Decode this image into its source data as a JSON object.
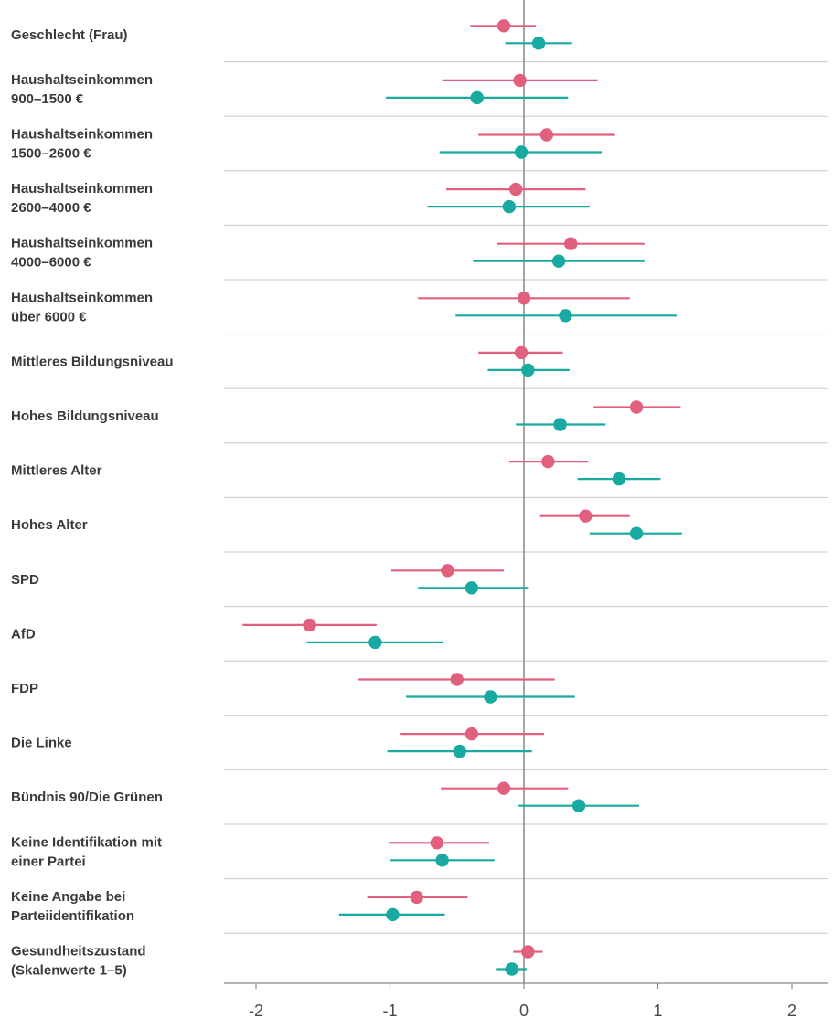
{
  "chart_data": {
    "type": "forest",
    "xlim": [
      -2.2,
      2.3
    ],
    "x_ticks": [
      {
        "value": -2,
        "label": "-2"
      },
      {
        "value": -1,
        "label": "-1"
      },
      {
        "value": 0,
        "label": "0"
      },
      {
        "value": 1,
        "label": "1"
      },
      {
        "value": 2,
        "label": "2"
      }
    ],
    "reference_line": 0,
    "grid": "row separators",
    "series": [
      {
        "color": "#E0607E"
      },
      {
        "color": "#18A9A1"
      }
    ],
    "rows": [
      {
        "label": [
          "Geschlecht (Frau)"
        ],
        "estimates": [
          {
            "est": -0.15,
            "lo": -0.4,
            "hi": 0.09
          },
          {
            "est": 0.11,
            "lo": -0.14,
            "hi": 0.36
          }
        ]
      },
      {
        "label": [
          "Haushaltseinkommen",
          "900–1500 €"
        ],
        "estimates": [
          {
            "est": -0.03,
            "lo": -0.61,
            "hi": 0.55
          },
          {
            "est": -0.35,
            "lo": -1.03,
            "hi": 0.33
          }
        ]
      },
      {
        "label": [
          "Haushaltseinkommen",
          "1500–2600 €"
        ],
        "estimates": [
          {
            "est": 0.17,
            "lo": -0.34,
            "hi": 0.68
          },
          {
            "est": -0.02,
            "lo": -0.63,
            "hi": 0.58
          }
        ]
      },
      {
        "label": [
          "Haushaltseinkommen",
          "2600–4000 €"
        ],
        "estimates": [
          {
            "est": -0.06,
            "lo": -0.58,
            "hi": 0.46
          },
          {
            "est": -0.11,
            "lo": -0.72,
            "hi": 0.49
          }
        ]
      },
      {
        "label": [
          "Haushaltseinkommen",
          "4000–6000 €"
        ],
        "estimates": [
          {
            "est": 0.35,
            "lo": -0.2,
            "hi": 0.9
          },
          {
            "est": 0.26,
            "lo": -0.38,
            "hi": 0.9
          }
        ]
      },
      {
        "label": [
          "Haushaltseinkommen",
          "über 6000 €"
        ],
        "estimates": [
          {
            "est": 0.0,
            "lo": -0.79,
            "hi": 0.79
          },
          {
            "est": 0.31,
            "lo": -0.51,
            "hi": 1.14
          }
        ]
      },
      {
        "label": [
          "Mittleres Bildungsniveau"
        ],
        "estimates": [
          {
            "est": -0.02,
            "lo": -0.34,
            "hi": 0.29
          },
          {
            "est": 0.03,
            "lo": -0.27,
            "hi": 0.34
          }
        ]
      },
      {
        "label": [
          "Hohes Bildungsniveau"
        ],
        "estimates": [
          {
            "est": 0.84,
            "lo": 0.52,
            "hi": 1.17
          },
          {
            "est": 0.27,
            "lo": -0.06,
            "hi": 0.61
          }
        ]
      },
      {
        "label": [
          "Mittleres Alter"
        ],
        "estimates": [
          {
            "est": 0.18,
            "lo": -0.11,
            "hi": 0.48
          },
          {
            "est": 0.71,
            "lo": 0.4,
            "hi": 1.02
          }
        ]
      },
      {
        "label": [
          "Hohes Alter"
        ],
        "estimates": [
          {
            "est": 0.46,
            "lo": 0.12,
            "hi": 0.79
          },
          {
            "est": 0.84,
            "lo": 0.49,
            "hi": 1.18
          }
        ]
      },
      {
        "label": [
          "SPD"
        ],
        "estimates": [
          {
            "est": -0.57,
            "lo": -0.99,
            "hi": -0.15
          },
          {
            "est": -0.39,
            "lo": -0.79,
            "hi": 0.03
          }
        ]
      },
      {
        "label": [
          "AfD"
        ],
        "estimates": [
          {
            "est": -1.6,
            "lo": -2.1,
            "hi": -1.1
          },
          {
            "est": -1.11,
            "lo": -1.62,
            "hi": -0.6
          }
        ]
      },
      {
        "label": [
          "FDP"
        ],
        "estimates": [
          {
            "est": -0.5,
            "lo": -1.24,
            "hi": 0.23
          },
          {
            "est": -0.25,
            "lo": -0.88,
            "hi": 0.38
          }
        ]
      },
      {
        "label": [
          "Die Linke"
        ],
        "estimates": [
          {
            "est": -0.39,
            "lo": -0.92,
            "hi": 0.15
          },
          {
            "est": -0.48,
            "lo": -1.02,
            "hi": 0.06
          }
        ]
      },
      {
        "label": [
          "Bündnis 90/Die Grünen"
        ],
        "estimates": [
          {
            "est": -0.15,
            "lo": -0.62,
            "hi": 0.33
          },
          {
            "est": 0.41,
            "lo": -0.04,
            "hi": 0.86
          }
        ]
      },
      {
        "label": [
          "Keine Identifikation mit",
          "einer Partei"
        ],
        "estimates": [
          {
            "est": -0.65,
            "lo": -1.01,
            "hi": -0.26
          },
          {
            "est": -0.61,
            "lo": -1.0,
            "hi": -0.22
          }
        ]
      },
      {
        "label": [
          "Keine Angabe bei",
          "Parteiidentifikation"
        ],
        "estimates": [
          {
            "est": -0.8,
            "lo": -1.17,
            "hi": -0.42
          },
          {
            "est": -0.98,
            "lo": -1.38,
            "hi": -0.59
          }
        ]
      },
      {
        "label": [
          "Gesundheitszustand",
          "(Skalenwerte 1–5)"
        ],
        "estimates": [
          {
            "est": 0.03,
            "lo": -0.08,
            "hi": 0.14
          },
          {
            "est": -0.09,
            "lo": -0.21,
            "hi": 0.02
          }
        ]
      }
    ]
  }
}
